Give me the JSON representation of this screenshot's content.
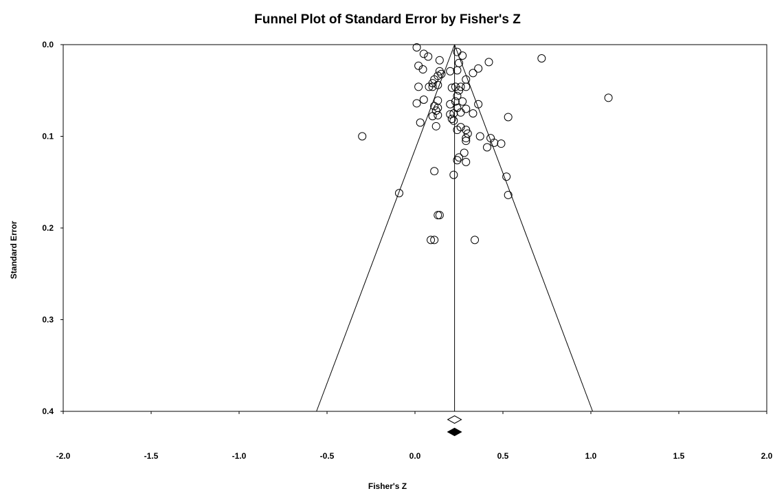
{
  "chart_data": {
    "type": "scatter",
    "title": "Funnel Plot of Standard Error by Fisher's Z",
    "xlabel": "Fisher's Z",
    "ylabel": "Standard Error",
    "xlim": [
      -2.0,
      2.0
    ],
    "ylim": [
      0.0,
      0.4
    ],
    "y_inverted": true,
    "x_ticks": [
      "-2.0",
      "-1.5",
      "-1.0",
      "-0.5",
      "0.0",
      "0.5",
      "1.0",
      "1.5",
      "2.0"
    ],
    "y_ticks": [
      "0.0",
      "0.1",
      "0.2",
      "0.3",
      "0.4"
    ],
    "grid": false,
    "pooled_estimate": 0.225,
    "funnel_limits_at_bottom": [
      -0.56,
      1.01
    ],
    "marker": "open-circle",
    "summary_markers": [
      {
        "kind": "open-diamond",
        "x": 0.225
      },
      {
        "kind": "filled-diamond",
        "x": 0.225
      }
    ],
    "points": [
      {
        "x": 0.01,
        "y": 0.003
      },
      {
        "x": 0.05,
        "y": 0.01
      },
      {
        "x": 0.075,
        "y": 0.013
      },
      {
        "x": 0.24,
        "y": 0.008
      },
      {
        "x": 0.27,
        "y": 0.012
      },
      {
        "x": 0.72,
        "y": 0.015
      },
      {
        "x": 0.42,
        "y": 0.019
      },
      {
        "x": 0.14,
        "y": 0.017
      },
      {
        "x": 0.25,
        "y": 0.02
      },
      {
        "x": 0.02,
        "y": 0.023
      },
      {
        "x": 0.045,
        "y": 0.027
      },
      {
        "x": 0.36,
        "y": 0.026
      },
      {
        "x": 0.14,
        "y": 0.029
      },
      {
        "x": 0.2,
        "y": 0.029
      },
      {
        "x": 0.24,
        "y": 0.028
      },
      {
        "x": 0.33,
        "y": 0.031
      },
      {
        "x": 0.15,
        "y": 0.032
      },
      {
        "x": 0.13,
        "y": 0.034
      },
      {
        "x": 0.11,
        "y": 0.038
      },
      {
        "x": 0.1,
        "y": 0.042
      },
      {
        "x": 0.29,
        "y": 0.038
      },
      {
        "x": 0.13,
        "y": 0.044
      },
      {
        "x": 0.02,
        "y": 0.046
      },
      {
        "x": 0.08,
        "y": 0.046
      },
      {
        "x": 0.1,
        "y": 0.046
      },
      {
        "x": 0.23,
        "y": 0.046
      },
      {
        "x": 0.26,
        "y": 0.046
      },
      {
        "x": 0.29,
        "y": 0.046
      },
      {
        "x": 0.21,
        "y": 0.047
      },
      {
        "x": 0.25,
        "y": 0.05
      },
      {
        "x": 0.24,
        "y": 0.056
      },
      {
        "x": 1.1,
        "y": 0.058
      },
      {
        "x": 0.05,
        "y": 0.06
      },
      {
        "x": 0.13,
        "y": 0.061
      },
      {
        "x": 0.23,
        "y": 0.062
      },
      {
        "x": 0.27,
        "y": 0.062
      },
      {
        "x": 0.01,
        "y": 0.064
      },
      {
        "x": 0.2,
        "y": 0.065
      },
      {
        "x": 0.36,
        "y": 0.065
      },
      {
        "x": 0.11,
        "y": 0.067
      },
      {
        "x": 0.13,
        "y": 0.069
      },
      {
        "x": 0.24,
        "y": 0.069
      },
      {
        "x": 0.29,
        "y": 0.07
      },
      {
        "x": 0.12,
        "y": 0.072
      },
      {
        "x": 0.26,
        "y": 0.074
      },
      {
        "x": 0.22,
        "y": 0.075
      },
      {
        "x": 0.33,
        "y": 0.075
      },
      {
        "x": 0.2,
        "y": 0.076
      },
      {
        "x": 0.13,
        "y": 0.077
      },
      {
        "x": 0.1,
        "y": 0.078
      },
      {
        "x": 0.21,
        "y": 0.081
      },
      {
        "x": 0.53,
        "y": 0.079
      },
      {
        "x": 0.22,
        "y": 0.083
      },
      {
        "x": 0.03,
        "y": 0.085
      },
      {
        "x": 0.12,
        "y": 0.089
      },
      {
        "x": 0.26,
        "y": 0.09
      },
      {
        "x": 0.24,
        "y": 0.093
      },
      {
        "x": 0.29,
        "y": 0.093
      },
      {
        "x": 0.3,
        "y": 0.097
      },
      {
        "x": -0.3,
        "y": 0.1
      },
      {
        "x": 0.37,
        "y": 0.1
      },
      {
        "x": 0.29,
        "y": 0.102
      },
      {
        "x": 0.43,
        "y": 0.102
      },
      {
        "x": 0.29,
        "y": 0.105
      },
      {
        "x": 0.45,
        "y": 0.107
      },
      {
        "x": 0.49,
        "y": 0.108
      },
      {
        "x": 0.41,
        "y": 0.112
      },
      {
        "x": 0.28,
        "y": 0.118
      },
      {
        "x": 0.25,
        "y": 0.123
      },
      {
        "x": 0.24,
        "y": 0.126
      },
      {
        "x": 0.29,
        "y": 0.128
      },
      {
        "x": 0.11,
        "y": 0.138
      },
      {
        "x": 0.22,
        "y": 0.142
      },
      {
        "x": 0.52,
        "y": 0.144
      },
      {
        "x": -0.09,
        "y": 0.162
      },
      {
        "x": 0.53,
        "y": 0.164
      },
      {
        "x": 0.13,
        "y": 0.186
      },
      {
        "x": 0.14,
        "y": 0.186
      },
      {
        "x": 0.09,
        "y": 0.213
      },
      {
        "x": 0.11,
        "y": 0.213
      },
      {
        "x": 0.34,
        "y": 0.213
      }
    ]
  }
}
